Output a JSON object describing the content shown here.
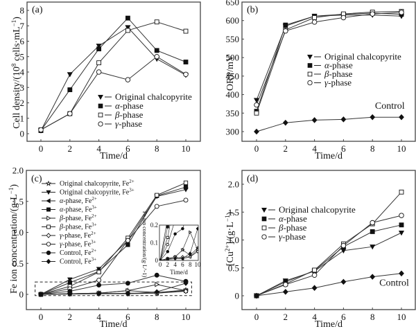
{
  "chart_data": [
    {
      "id": "a",
      "type": "line",
      "panel_label": "(a)",
      "xlabel": "Time/d",
      "ylabel": "Cell density/(10^8 cells·mL^-1)",
      "x": [
        0,
        2,
        4,
        6,
        8,
        10
      ],
      "xticks": [
        "0",
        "2",
        "4",
        "6",
        "8",
        "10"
      ],
      "yticks": [
        "0",
        "1",
        "2",
        "3",
        "4",
        "5",
        "6",
        "7",
        "8"
      ],
      "xlim": [
        -1.5,
        12.0
      ],
      "ylim": [
        -0.45,
        8.45
      ],
      "legend_position": "center-right",
      "series": [
        {
          "name": "Original chalcopyrite",
          "marker": "triangle-down-filled",
          "values": [
            0.2,
            3.85,
            5.7,
            6.9,
            4.85,
            3.8
          ]
        },
        {
          "name": "α-phase",
          "marker": "square-filled",
          "values": [
            0.2,
            2.85,
            5.5,
            7.5,
            5.4,
            4.65
          ]
        },
        {
          "name": "β-phase",
          "marker": "square-open",
          "values": [
            0.25,
            1.3,
            4.6,
            6.7,
            7.25,
            6.65
          ]
        },
        {
          "name": "γ-phase",
          "marker": "circle-open",
          "values": [
            0.25,
            1.3,
            4.0,
            3.5,
            5.0,
            3.85
          ]
        }
      ],
      "annotations": []
    },
    {
      "id": "b",
      "type": "line",
      "panel_label": "(b)",
      "xlabel": "Time/d",
      "ylabel": "ORP/mV",
      "x": [
        0,
        2,
        4,
        6,
        8,
        10
      ],
      "xticks": [
        "0",
        "2",
        "4",
        "6",
        "8",
        "10"
      ],
      "yticks": [
        "300",
        "350",
        "400",
        "450",
        "500",
        "550",
        "600",
        "650"
      ],
      "xlim": [
        -1.0,
        12.0
      ],
      "ylim": [
        275,
        650
      ],
      "legend_position": "center-right",
      "series": [
        {
          "name": "Original chalcopyrite",
          "marker": "triangle-down-filled",
          "values": [
            385,
            585,
            612,
            615,
            615,
            612
          ]
        },
        {
          "name": "α-phase",
          "marker": "square-filled",
          "values": [
            355,
            588,
            612,
            617,
            620,
            617
          ]
        },
        {
          "name": "β-phase",
          "marker": "square-open",
          "values": [
            350,
            575,
            608,
            618,
            623,
            625
          ]
        },
        {
          "name": "γ-phase",
          "marker": "circle-open",
          "values": [
            372,
            572,
            596,
            608,
            618,
            622
          ]
        },
        {
          "name": "Control",
          "marker": "diamond-filled",
          "legend": false,
          "values": [
            300,
            324,
            331,
            333,
            339,
            339
          ]
        }
      ],
      "annotations": [
        {
          "text": "Control",
          "x": 9.2,
          "y": 362
        }
      ]
    },
    {
      "id": "c",
      "type": "line",
      "panel_label": "(c)",
      "xlabel": "Time/d",
      "ylabel": "Fe ion concentration/(g·L^-1)",
      "x": [
        0,
        2,
        4,
        6,
        8,
        10
      ],
      "xticks": [
        "0",
        "2",
        "4",
        "6",
        "8",
        "10"
      ],
      "yticks": [
        "0",
        "0.5",
        "1.0",
        "1.5",
        "2.0"
      ],
      "xlim": [
        -1.0,
        11.5
      ],
      "ylim": [
        -0.25,
        2.0
      ],
      "legend_position": "top-left",
      "series": [
        {
          "name": "Original chalcopyrite, Fe2+",
          "marker": "star-open",
          "values": [
            0,
            0.01,
            0.02,
            0.06,
            0.03,
            0.07
          ]
        },
        {
          "name": "Original chalcopyrite, Fe3+",
          "marker": "triangle-down-filled",
          "values": [
            0,
            0.24,
            0.41,
            0.87,
            1.58,
            1.69
          ]
        },
        {
          "name": "α-phase, Fe2+",
          "marker": "triangle-left-filled",
          "values": [
            0,
            0.01,
            0.02,
            0.01,
            0.02,
            0.06
          ]
        },
        {
          "name": "α-phase, Fe3+",
          "marker": "square-filled",
          "values": [
            0,
            0.19,
            0.37,
            0.8,
            1.59,
            1.73
          ]
        },
        {
          "name": "β-phase, Fe2+",
          "marker": "triangle-right-open",
          "values": [
            0,
            0.01,
            0.02,
            0.06,
            0.16,
            0.06
          ]
        },
        {
          "name": "β-phase, Fe3+",
          "marker": "square-open",
          "values": [
            0,
            0.13,
            0.36,
            0.91,
            1.6,
            1.8
          ]
        },
        {
          "name": "γ-phase, Fe2+",
          "marker": "diamond-open",
          "values": [
            0,
            0.005,
            0.01,
            0.02,
            0.02,
            0.05
          ]
        },
        {
          "name": "γ-phase, Fe3+",
          "marker": "hexagon-open",
          "values": [
            0,
            0.09,
            0.23,
            0.87,
            1.42,
            1.52
          ]
        },
        {
          "name": "Control, Fe2+",
          "marker": "circle-filled",
          "values": [
            0,
            0.05,
            0.15,
            0.18,
            0.31,
            0.21
          ]
        },
        {
          "name": "Control, Fe3+",
          "marker": "diamond-filled",
          "values": [
            0,
            0.01,
            0.01,
            0.01,
            0.04,
            0.18
          ]
        }
      ],
      "inset": {
        "xlabel": "Time/d",
        "ylabel": "Fe ion concentration/(g·L^-1)",
        "xticks": [
          "0",
          "2",
          "4",
          "6",
          "8",
          "10"
        ],
        "yticks": [
          "0",
          "0.1",
          "0.2"
        ],
        "xlim": [
          0,
          10
        ],
        "ylim": [
          0,
          0.2
        ]
      },
      "annotations": [
        {
          "type": "dashed-box",
          "x_range": [
            -0.4,
            10.4
          ],
          "y_range": [
            -0.02,
            0.2
          ]
        }
      ]
    },
    {
      "id": "d",
      "type": "line",
      "panel_label": "(d)",
      "xlabel": "Time/d",
      "ylabel": "[Cu2+]/(g·L^-1)",
      "x": [
        0,
        2,
        4,
        6,
        8,
        10
      ],
      "xticks": [
        "0",
        "2",
        "4",
        "6",
        "8",
        "10"
      ],
      "yticks": [
        "0",
        "0.5",
        "1.0",
        "1.5",
        "2.0"
      ],
      "xlim": [
        -1.0,
        11.5
      ],
      "ylim": [
        -0.25,
        2.25
      ],
      "legend_position": "center-left",
      "series": [
        {
          "name": "Original chalcopyrite",
          "marker": "triangle-down-filled",
          "values": [
            0,
            0.27,
            0.44,
            0.81,
            0.88,
            1.13
          ]
        },
        {
          "name": "α-phase",
          "marker": "square-filled",
          "values": [
            0,
            0.25,
            0.45,
            0.88,
            1.15,
            1.27
          ]
        },
        {
          "name": "β-phase",
          "marker": "square-open",
          "values": [
            0,
            0.21,
            0.46,
            0.93,
            1.29,
            1.86
          ]
        },
        {
          "name": "γ-phase",
          "marker": "circle-open",
          "values": [
            0,
            0.2,
            0.37,
            0.9,
            1.31,
            1.44
          ]
        },
        {
          "name": "Control",
          "marker": "diamond-filled",
          "legend": false,
          "values": [
            0,
            0.07,
            0.14,
            0.25,
            0.34,
            0.4
          ]
        }
      ],
      "annotations": [
        {
          "text": "Control",
          "x": 9.5,
          "y": 0.18
        }
      ]
    }
  ]
}
